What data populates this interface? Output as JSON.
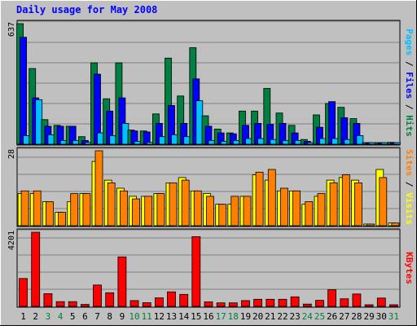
{
  "chart_data": {
    "type": "bar",
    "title": "Daily usage for May 2008",
    "days": [
      "1",
      "2",
      "3",
      "4",
      "5",
      "6",
      "7",
      "8",
      "9",
      "10",
      "11",
      "12",
      "13",
      "14",
      "15",
      "16",
      "17",
      "18",
      "19",
      "20",
      "21",
      "22",
      "23",
      "24",
      "25",
      "26",
      "27",
      "28",
      "29",
      "30",
      "31"
    ],
    "weekend_days": [
      3,
      4,
      10,
      11,
      17,
      18,
      24,
      25,
      31
    ],
    "panels": [
      {
        "id": "hits-files-pages",
        "ymax": 637,
        "ymax_label": "637",
        "series": [
          {
            "name": "Hits",
            "color": "#008040",
            "values": [
              637,
              400,
              130,
              100,
              95,
              40,
              430,
              240,
              430,
              75,
              70,
              160,
              455,
              255,
              510,
              150,
              80,
              60,
              175,
              175,
              295,
              165,
              100,
              25,
              155,
              215,
              195,
              135,
              0,
              0,
              10
            ]
          },
          {
            "name": "Files",
            "color": "#0000ff",
            "values": [
              565,
              245,
              95,
              95,
              95,
              20,
              370,
              175,
              245,
              70,
              65,
              110,
              205,
              110,
              345,
              95,
              60,
              55,
              100,
              110,
              105,
              110,
              60,
              15,
              90,
              225,
              140,
              110,
              0,
              0,
              8
            ]
          },
          {
            "name": "Pages",
            "color": "#00c0ff",
            "values": [
              45,
              235,
              50,
              20,
              20,
              10,
              60,
              45,
              110,
              15,
              10,
              40,
              50,
              40,
              230,
              20,
              15,
              20,
              30,
              30,
              25,
              20,
              20,
              5,
              30,
              30,
              25,
              45,
              0,
              0,
              5
            ]
          }
        ]
      },
      {
        "id": "sites-visits",
        "ymax": 28,
        "ymax_label": "28",
        "series": [
          {
            "name": "Visits",
            "color": "#ffff00",
            "values": [
              12,
              12,
              9,
              5,
              9,
              12,
              24,
              17,
              14,
              11,
              11,
              12,
              16,
              18,
              13,
              12,
              8,
              8,
              11,
              19,
              17,
              13,
              13,
              8,
              11,
              17,
              18,
              17,
              0,
              21,
              1
            ]
          },
          {
            "name": "Sites",
            "color": "#ff8000",
            "values": [
              13,
              13,
              9,
              5,
              12,
              12,
              28,
              16,
              13,
              10,
              11,
              12,
              16,
              17,
              13,
              11,
              8,
              11,
              11,
              20,
              21,
              14,
              13,
              9,
              12,
              16,
              19,
              16,
              0,
              18,
              1
            ]
          }
        ]
      },
      {
        "id": "kbytes",
        "ymax": 4201,
        "ymax_label": "4201",
        "series": [
          {
            "name": "KBytes",
            "color": "#ff0000",
            "values": [
              1580,
              4201,
              720,
              270,
              270,
              110,
              1210,
              770,
              2800,
              330,
              210,
              480,
              820,
              680,
              3950,
              260,
              200,
              200,
              330,
              400,
              400,
              400,
              540,
              130,
              340,
              940,
              430,
              700,
              0,
              470,
              60
            ]
          }
        ]
      }
    ],
    "ylabels": [
      [
        {
          "text": "Pages",
          "color": "#00c0ff"
        },
        {
          "text": " / ",
          "color": "#000000"
        },
        {
          "text": "Files",
          "color": "#0000ff"
        },
        {
          "text": " / ",
          "color": "#000000"
        },
        {
          "text": "Hits",
          "color": "#008040"
        }
      ],
      [
        {
          "text": "Sites",
          "color": "#ff8000"
        },
        {
          "text": " / ",
          "color": "#000000"
        },
        {
          "text": "Visits",
          "color": "#ffff00"
        }
      ],
      [
        {
          "text": "KBytes",
          "color": "#ff0000"
        }
      ]
    ],
    "colors": {
      "background": "#c0c0c0",
      "title": "#0000ff",
      "weekday_label": "#000000",
      "weekend_label": "#008040",
      "grid": "#808080"
    }
  }
}
